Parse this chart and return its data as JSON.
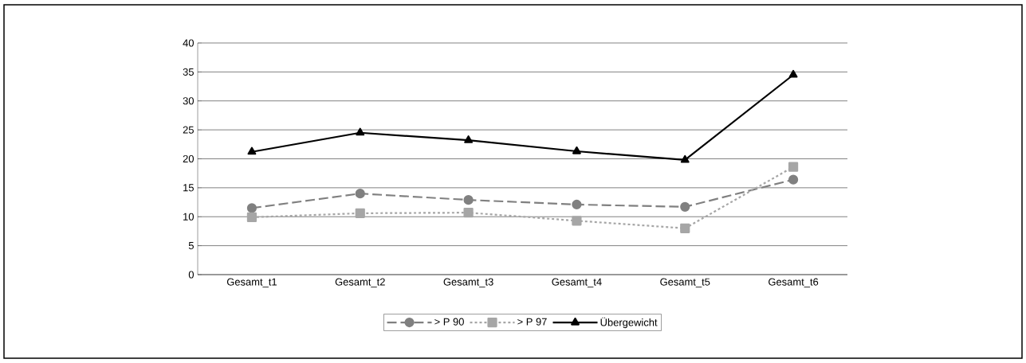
{
  "chart_data": {
    "type": "line",
    "categories": [
      "Gesamt_t1",
      "Gesamt_t2",
      "Gesamt_t3",
      "Gesamt_t4",
      "Gesamt_t5",
      "Gesamt_t6"
    ],
    "series": [
      {
        "name": "> P 90",
        "color": "#808080",
        "marker": "circle",
        "line_style": "dashed",
        "values": [
          11.5,
          14.0,
          12.9,
          12.1,
          11.7,
          16.4
        ]
      },
      {
        "name": "> P 97",
        "color": "#a6a6a6",
        "marker": "square",
        "line_style": "dotted",
        "values": [
          9.9,
          10.6,
          10.7,
          9.3,
          8.0,
          18.6
        ]
      },
      {
        "name": "Übergewicht",
        "color": "#000000",
        "marker": "triangle",
        "line_style": "solid",
        "values": [
          21.2,
          24.5,
          23.2,
          21.3,
          19.8,
          34.5
        ]
      }
    ],
    "ylim": [
      0,
      40
    ],
    "yticks": [
      0,
      5,
      10,
      15,
      20,
      25,
      30,
      35,
      40
    ],
    "grid": "y",
    "legend": "bottom"
  }
}
